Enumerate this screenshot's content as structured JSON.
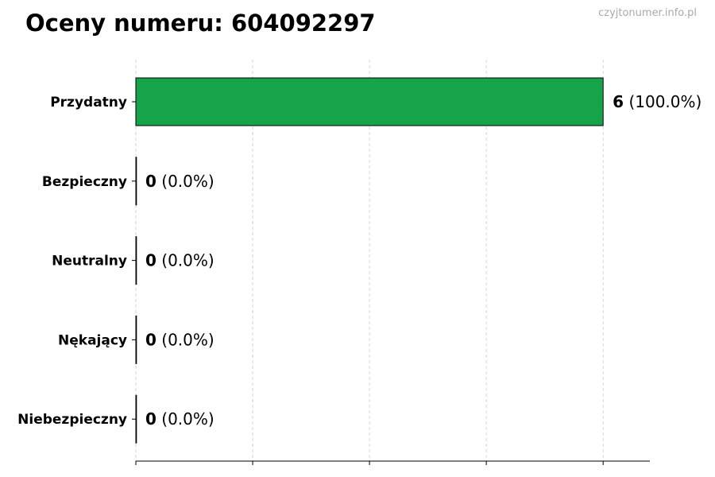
{
  "title": "Oceny numeru: 604092297",
  "watermark": "czyjtonumer.info.pl",
  "chart_data": {
    "type": "bar",
    "orientation": "horizontal",
    "title": "Oceny numeru: 604092297",
    "categories": [
      "Przydatny",
      "Bezpieczny",
      "Neutralny",
      "Nękający",
      "Niebezpieczny"
    ],
    "values": [
      6,
      0,
      0,
      0,
      0
    ],
    "labels": [
      {
        "count": "6",
        "pct": "(100.0%)"
      },
      {
        "count": "0",
        "pct": "(0.0%)"
      },
      {
        "count": "0",
        "pct": "(0.0%)"
      },
      {
        "count": "0",
        "pct": "(0.0%)"
      },
      {
        "count": "0",
        "pct": "(0.0%)"
      }
    ],
    "xlim": [
      0,
      6.6
    ],
    "xticks": [
      0,
      1.5,
      3,
      4.5,
      6
    ],
    "grid": "x-dashed",
    "bar_color": "#17a34a",
    "xlabel": "",
    "ylabel": ""
  }
}
